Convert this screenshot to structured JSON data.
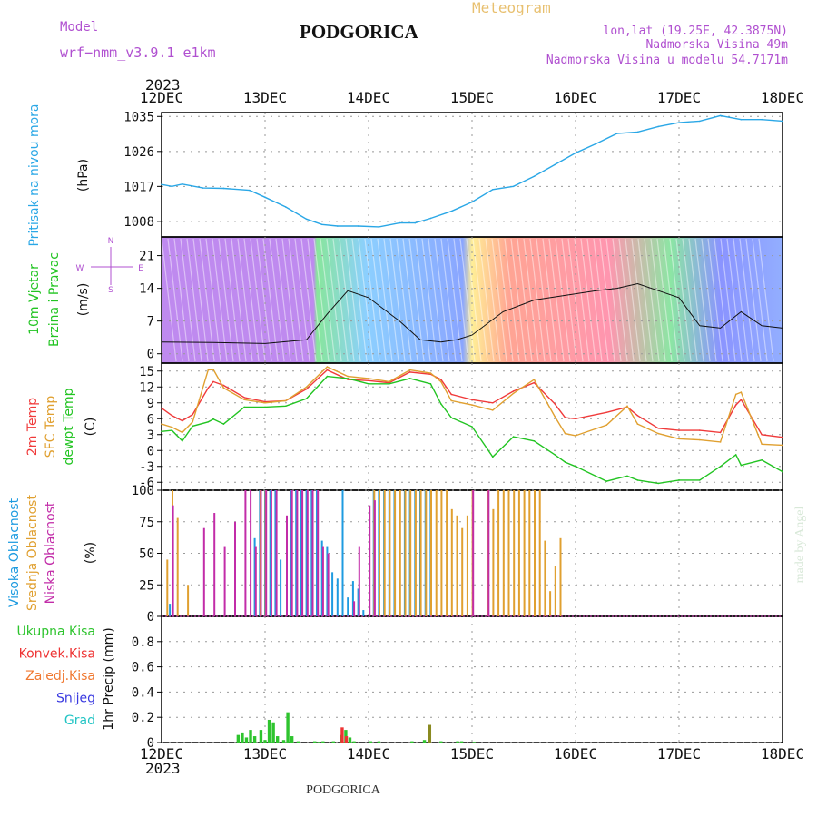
{
  "header": {
    "model_label": "Model",
    "model_name": "wrf−nmm_v3.9.1  e1km",
    "station": "PODGORICA",
    "meteogram_label": "Meteogram",
    "lonlat": "lon,lat (19.25E, 42.3875N)",
    "elevation": "Nadmorska Visina 49m",
    "model_elevation": "Nadmorska Visina u modelu 54.7171m",
    "footer_station": "PODGORICA",
    "watermark": "made by Angel"
  },
  "colors": {
    "pressure": "#2aa7e6",
    "temp2m": "#f03a3a",
    "sfc": "#e0a030",
    "dew": "#22c422",
    "high_cloud": "#1e9be0",
    "mid_cloud": "#e0a030",
    "low_cloud": "#c22ca8",
    "precip_total": "#2ec42e",
    "precip_conv": "#ee3333",
    "precip_frozen": "#f07830",
    "snow": "#3a3ae0",
    "hail": "#22c4c4",
    "purple": "#b050d0"
  },
  "chart_data": [
    {
      "type": "line",
      "panel": "pressure",
      "ylabel_left": "Pritisak na nivou mora",
      "unit": "(hPa)",
      "x_ticks": [
        "12DEC",
        "13DEC",
        "14DEC",
        "15DEC",
        "16DEC",
        "17DEC",
        "18DEC"
      ],
      "year_top": "2023",
      "year_bottom": "2023",
      "ylim": [
        1004,
        1036
      ],
      "yticks": [
        1008,
        1017,
        1026,
        1035
      ],
      "series": [
        {
          "color": "#2aa7e6",
          "x": [
            0,
            0.1,
            0.2,
            0.4,
            0.6,
            0.85,
            1.0,
            1.2,
            1.4,
            1.55,
            1.7,
            1.9,
            2.1,
            2.3,
            2.45,
            2.6,
            2.8,
            3.0,
            3.2,
            3.4,
            3.6,
            3.8,
            4.0,
            4.2,
            4.4,
            4.6,
            4.8,
            5.0,
            5.2,
            5.4,
            5.6,
            5.8,
            6.0
          ],
          "values": [
            1017.5,
            1017,
            1017.6,
            1016.6,
            1016.5,
            1016,
            1014.2,
            1011.7,
            1008.6,
            1007.2,
            1006.8,
            1006.8,
            1006.6,
            1007.6,
            1007.6,
            1008.8,
            1010.6,
            1013,
            1016.2,
            1017,
            1019.6,
            1022.6,
            1025.6,
            1028,
            1030.6,
            1031,
            1032.4,
            1033.4,
            1033.8,
            1035.2,
            1034.2,
            1034.2,
            1033.8
          ]
        }
      ]
    },
    {
      "type": "line",
      "panel": "wind",
      "ylabel_left": [
        "10m Vjetar",
        "Brzina i Pravac"
      ],
      "unit": "(m/s)",
      "compass": [
        "N",
        "S",
        "W",
        "E"
      ],
      "ylim": [
        -2,
        25
      ],
      "yticks": [
        0,
        7,
        14,
        21
      ],
      "series": [
        {
          "name": "speed",
          "color": "#111111",
          "x": [
            0,
            0.5,
            1.0,
            1.4,
            1.6,
            1.8,
            2.0,
            2.3,
            2.5,
            2.7,
            2.85,
            3.0,
            3.3,
            3.6,
            3.9,
            4.2,
            4.4,
            4.6,
            4.8,
            5.0,
            5.2,
            5.4,
            5.6,
            5.8,
            6.0
          ],
          "values": [
            2.5,
            2.4,
            2.2,
            3,
            8.5,
            13.5,
            12,
            7,
            3,
            2.5,
            3,
            4,
            9,
            11.5,
            12.5,
            13.5,
            14,
            15,
            13.5,
            12,
            6,
            5.5,
            9,
            6,
            5.5
          ]
        }
      ]
    },
    {
      "type": "line",
      "panel": "temperature",
      "ylabel_left": [
        "2m Temp",
        "SFC Temp",
        "dewpt Temp"
      ],
      "unit": "(C)",
      "ylim": [
        -7.5,
        16.5
      ],
      "yticks": [
        -6,
        -3,
        0,
        3,
        6,
        9,
        12,
        15
      ],
      "series": [
        {
          "name": "2m Temp",
          "color": "#f03a3a",
          "x": [
            0,
            0.1,
            0.2,
            0.3,
            0.45,
            0.5,
            0.6,
            0.8,
            1.0,
            1.2,
            1.4,
            1.6,
            1.8,
            2.0,
            2.2,
            2.4,
            2.6,
            2.7,
            2.8,
            3.0,
            3.2,
            3.4,
            3.6,
            3.8,
            3.9,
            4.0,
            4.3,
            4.5,
            4.6,
            4.8,
            5.0,
            5.2,
            5.4,
            5.55,
            5.6,
            5.8,
            6.0
          ],
          "values": [
            8,
            6.6,
            5.6,
            6.8,
            11.8,
            13,
            12.3,
            10,
            9.2,
            9.4,
            11.6,
            15.2,
            13.4,
            13.2,
            12.8,
            14.8,
            14.4,
            13.4,
            10.6,
            9.6,
            9,
            11.2,
            12.8,
            8.8,
            6.2,
            6,
            7.2,
            8.2,
            6.6,
            4.2,
            3.8,
            3.8,
            3.4,
            8.6,
            9.6,
            3,
            2.5
          ]
        },
        {
          "name": "SFC Temp",
          "color": "#e0a030",
          "x": [
            0,
            0.1,
            0.2,
            0.3,
            0.45,
            0.5,
            0.6,
            0.8,
            1.0,
            1.2,
            1.4,
            1.6,
            1.8,
            2.0,
            2.2,
            2.4,
            2.6,
            2.7,
            2.8,
            3.0,
            3.2,
            3.4,
            3.6,
            3.8,
            3.9,
            4.0,
            4.3,
            4.5,
            4.6,
            4.8,
            5.0,
            5.2,
            5.4,
            5.55,
            5.6,
            5.8,
            6.0
          ],
          "values": [
            5,
            4.4,
            3.4,
            5.4,
            15.2,
            15.3,
            11.8,
            9.6,
            9,
            9.4,
            12,
            15.8,
            14,
            13.6,
            13,
            15.2,
            14.6,
            13,
            9.4,
            8.6,
            7.6,
            10.8,
            13.4,
            6.4,
            3.2,
            2.8,
            4.8,
            8.4,
            5,
            3.2,
            2.2,
            2,
            1.6,
            10.6,
            11,
            1.2,
            1
          ]
        },
        {
          "name": "dewpt Temp",
          "color": "#22c422",
          "x": [
            0,
            0.1,
            0.2,
            0.3,
            0.45,
            0.5,
            0.6,
            0.8,
            1.0,
            1.2,
            1.4,
            1.6,
            1.8,
            2.0,
            2.2,
            2.4,
            2.6,
            2.7,
            2.8,
            3.0,
            3.2,
            3.4,
            3.6,
            3.8,
            3.9,
            4.0,
            4.3,
            4.5,
            4.6,
            4.8,
            5.0,
            5.2,
            5.4,
            5.55,
            5.6,
            5.8,
            6.0
          ],
          "values": [
            3.6,
            3.8,
            1.8,
            4.6,
            5.4,
            5.9,
            5,
            8.2,
            8.2,
            8.4,
            9.8,
            14,
            13.6,
            12.6,
            12.6,
            13.6,
            12.6,
            8.8,
            6.2,
            4.5,
            -1.2,
            2.6,
            1.8,
            -0.8,
            -2.2,
            -3,
            -5.8,
            -4.8,
            -5.6,
            -6.2,
            -5.6,
            -5.6,
            -3,
            -0.8,
            -2.8,
            -1.8,
            -4
          ]
        }
      ]
    },
    {
      "type": "bar",
      "panel": "cloud",
      "ylabel_left": [
        "Visoka Oblacnost",
        "Srednja Oblacnost",
        "Niska Oblacnost"
      ],
      "unit": "(%)",
      "ylim": [
        0,
        100
      ],
      "yticks": [
        0,
        25,
        50,
        75,
        100
      ],
      "series": [
        {
          "name": "Visoka Oblacnost",
          "color": "#1e9be0",
          "x": [
            0.08,
            0.9,
            0.95,
            1.0,
            1.05,
            1.1,
            1.15,
            1.25,
            1.3,
            1.35,
            1.4,
            1.45,
            1.5,
            1.55,
            1.6,
            1.65,
            1.7,
            1.75,
            1.8,
            1.85,
            1.9,
            1.95,
            2.05,
            2.1,
            2.15,
            2.2,
            2.25,
            2.3,
            2.35,
            2.4,
            2.45,
            2.5,
            2.55,
            2.6
          ],
          "values": [
            10,
            62,
            100,
            100,
            100,
            100,
            45,
            100,
            100,
            100,
            100,
            100,
            100,
            60,
            55,
            35,
            30,
            100,
            15,
            28,
            22,
            5,
            100,
            100,
            100,
            100,
            100,
            100,
            100,
            100,
            100,
            100,
            100,
            100
          ]
        },
        {
          "name": "Srednja Oblacnost",
          "color": "#e0a030",
          "x": [
            0.05,
            0.1,
            0.15,
            0.25,
            0.95,
            1.0,
            2.05,
            2.1,
            2.15,
            2.2,
            2.25,
            2.3,
            2.35,
            2.4,
            2.45,
            2.5,
            2.55,
            2.6,
            2.65,
            2.7,
            2.75,
            2.8,
            2.85,
            2.9,
            2.95,
            3.0,
            3.15,
            3.2,
            3.25,
            3.3,
            3.35,
            3.4,
            3.45,
            3.5,
            3.55,
            3.6,
            3.65,
            3.7,
            3.75,
            3.8,
            3.85
          ],
          "values": [
            45,
            100,
            78,
            25,
            100,
            100,
            100,
            100,
            100,
            100,
            100,
            100,
            100,
            100,
            100,
            100,
            100,
            100,
            100,
            100,
            100,
            85,
            80,
            70,
            80,
            100,
            100,
            85,
            100,
            100,
            100,
            100,
            100,
            100,
            100,
            100,
            100,
            60,
            20,
            40,
            62
          ]
        },
        {
          "name": "Niska Oblacnost",
          "color": "#c22ca8",
          "x": [
            0.1,
            0.4,
            0.5,
            0.6,
            0.7,
            0.8,
            0.85,
            0.9,
            0.95,
            1.0,
            1.05,
            1.1,
            1.2,
            1.25,
            1.3,
            1.35,
            1.4,
            1.45,
            1.5,
            1.55,
            1.6,
            1.85,
            1.9,
            2.0,
            2.05,
            3.0,
            3.15
          ],
          "values": [
            88,
            70,
            82,
            55,
            75,
            100,
            100,
            55,
            100,
            100,
            100,
            100,
            80,
            100,
            100,
            100,
            100,
            100,
            100,
            55,
            50,
            12,
            55,
            88,
            92,
            100,
            100
          ]
        }
      ]
    },
    {
      "type": "bar",
      "panel": "precip",
      "ylabel_left": [
        "Ukupna Kisa",
        "Konvek.Kisa",
        "Zaledj.Kisa",
        "Snijeg",
        "Grad"
      ],
      "unit": "1hr Precip (mm)",
      "ylim": [
        0,
        1.0
      ],
      "yticks": [
        0,
        0.2,
        0.4,
        0.6,
        0.8
      ],
      "series": [
        {
          "name": "Ukupna Kisa",
          "color": "#2ec42e",
          "x": [
            0.74,
            0.78,
            0.82,
            0.86,
            0.9,
            0.96,
            1.0,
            1.04,
            1.08,
            1.12,
            1.18,
            1.22,
            1.26,
            1.32,
            1.48,
            1.52,
            1.56,
            1.66,
            1.74,
            1.78,
            1.82,
            1.86,
            2.02,
            2.1,
            2.42,
            2.54,
            2.7,
            2.86,
            2.9,
            3.02
          ],
          "values": [
            0.06,
            0.08,
            0.04,
            0.1,
            0.05,
            0.1,
            0.02,
            0.18,
            0.16,
            0.05,
            0.02,
            0.24,
            0.05,
            0.01,
            0.01,
            0.005,
            0.01,
            0.01,
            0.06,
            0.1,
            0.04,
            0.01,
            0.01,
            0.01,
            0.01,
            0.02,
            0.01,
            0.01,
            0.01,
            0.005
          ]
        },
        {
          "name": "Konvek.Kisa",
          "color": "#ee3333",
          "x": [
            1.74,
            1.78
          ],
          "values": [
            0.12,
            0.05
          ]
        },
        {
          "name": "Snijeg",
          "color": "#8a8a20",
          "x": [
            2.58
          ],
          "values": [
            0.14
          ]
        }
      ]
    }
  ]
}
